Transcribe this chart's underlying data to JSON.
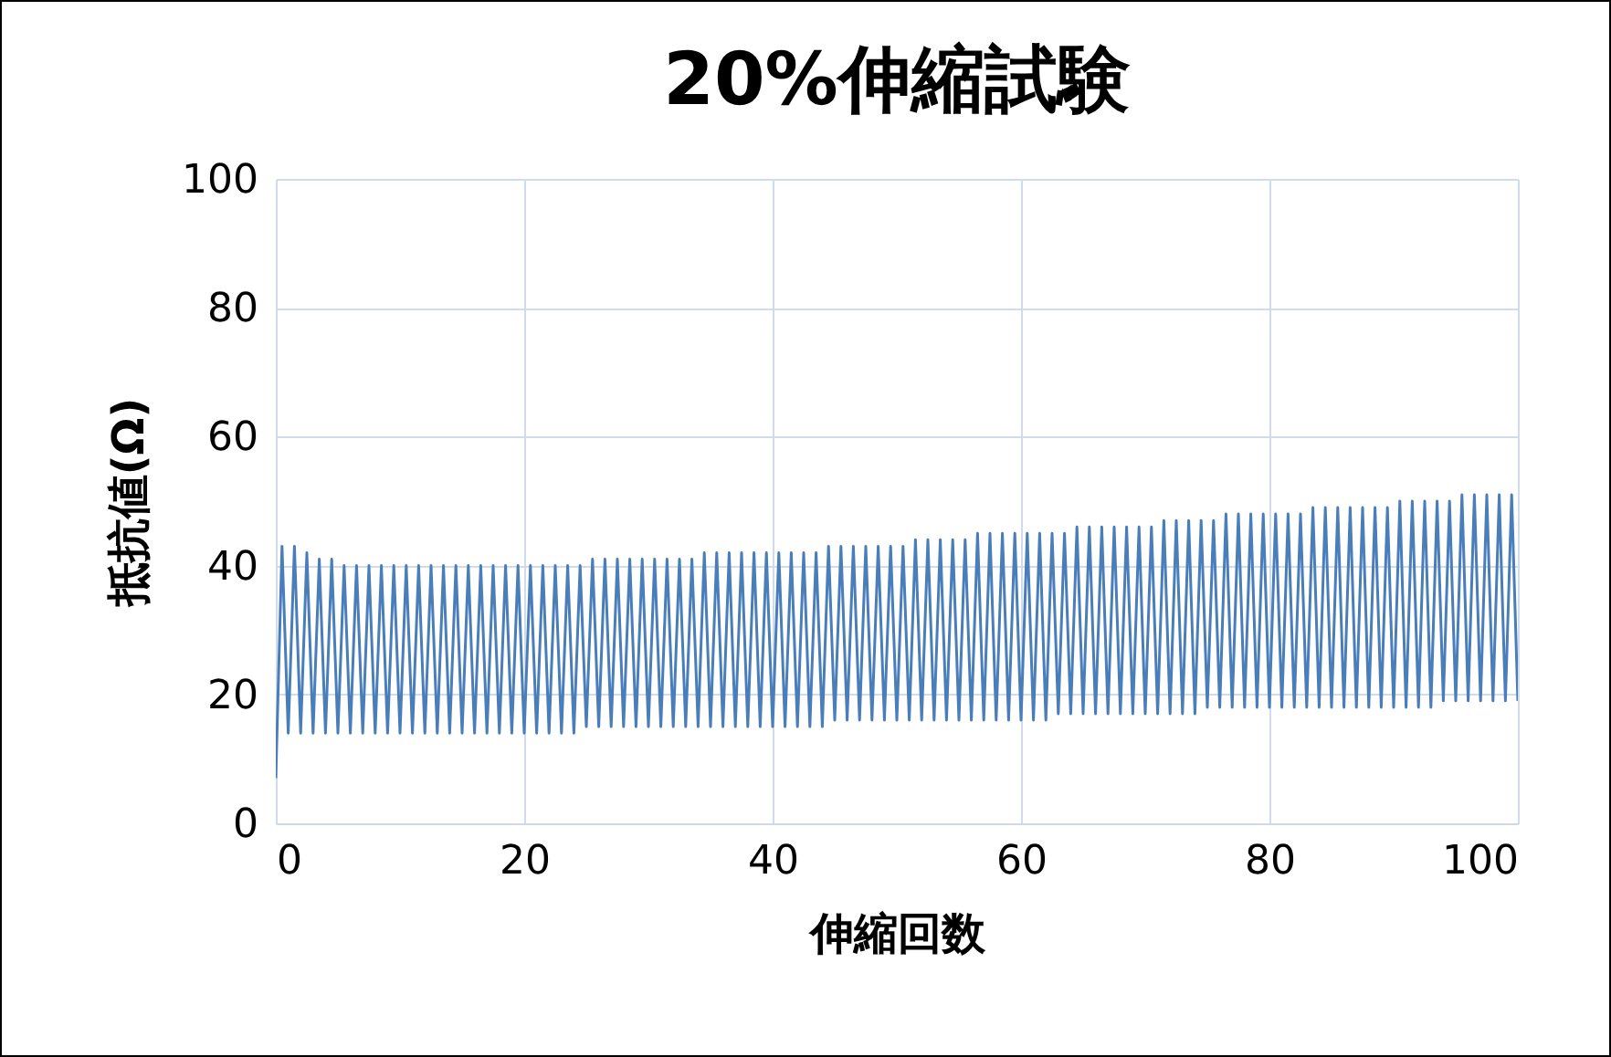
{
  "chart_data": {
    "type": "line",
    "title": "20%伸縮試験",
    "xlabel": "伸縮回数",
    "ylabel": "抵抗値(Ω)",
    "x": [
      0,
      0.5,
      1,
      1.5,
      2,
      2.5,
      3,
      3.5,
      4,
      4.5,
      5,
      5.5,
      6,
      6.5,
      7,
      7.5,
      8,
      8.5,
      9,
      9.5,
      10,
      10.5,
      11,
      11.5,
      12,
      12.5,
      13,
      13.5,
      14,
      14.5,
      15,
      15.5,
      16,
      16.5,
      17,
      17.5,
      18,
      18.5,
      19,
      19.5,
      20,
      20.5,
      21,
      21.5,
      22,
      22.5,
      23,
      23.5,
      24,
      24.5,
      25,
      25.5,
      26,
      26.5,
      27,
      27.5,
      28,
      28.5,
      29,
      29.5,
      30,
      30.5,
      31,
      31.5,
      32,
      32.5,
      33,
      33.5,
      34,
      34.5,
      35,
      35.5,
      36,
      36.5,
      37,
      37.5,
      38,
      38.5,
      39,
      39.5,
      40,
      40.5,
      41,
      41.5,
      42,
      42.5,
      43,
      43.5,
      44,
      44.5,
      45,
      45.5,
      46,
      46.5,
      47,
      47.5,
      48,
      48.5,
      49,
      49.5,
      50,
      50.5,
      51,
      51.5,
      52,
      52.5,
      53,
      53.5,
      54,
      54.5,
      55,
      55.5,
      56,
      56.5,
      57,
      57.5,
      58,
      58.5,
      59,
      59.5,
      60,
      60.5,
      61,
      61.5,
      62,
      62.5,
      63,
      63.5,
      64,
      64.5,
      65,
      65.5,
      66,
      66.5,
      67,
      67.5,
      68,
      68.5,
      69,
      69.5,
      70,
      70.5,
      71,
      71.5,
      72,
      72.5,
      73,
      73.5,
      74,
      74.5,
      75,
      75.5,
      76,
      76.5,
      77,
      77.5,
      78,
      78.5,
      79,
      79.5,
      80,
      80.5,
      81,
      81.5,
      82,
      82.5,
      83,
      83.5,
      84,
      84.5,
      85,
      85.5,
      86,
      86.5,
      87,
      87.5,
      88,
      88.5,
      89,
      89.5,
      90,
      90.5,
      91,
      91.5,
      92,
      92.5,
      93,
      93.5,
      94,
      94.5,
      95,
      95.5,
      96,
      96.5,
      97,
      97.5,
      98,
      98.5,
      99,
      99.5,
      100
    ],
    "series": [
      {
        "color": "#4a7ebb",
        "values": [
          7,
          43,
          14,
          43,
          14,
          42,
          14,
          41,
          14,
          41,
          14,
          40,
          14,
          40,
          14,
          40,
          14,
          40,
          14,
          40,
          14,
          40,
          14,
          40,
          14,
          40,
          14,
          40,
          14,
          40,
          14,
          40,
          14,
          40,
          14,
          40,
          14,
          40,
          14,
          40,
          14,
          40,
          14,
          40,
          14,
          40,
          14,
          40,
          14,
          40,
          15,
          41,
          15,
          41,
          15,
          41,
          15,
          41,
          15,
          41,
          15,
          41,
          15,
          41,
          15,
          41,
          15,
          41,
          15,
          42,
          15,
          42,
          15,
          42,
          15,
          42,
          15,
          42,
          15,
          42,
          15,
          42,
          15,
          42,
          15,
          42,
          15,
          42,
          15,
          43,
          16,
          43,
          16,
          43,
          16,
          43,
          16,
          43,
          16,
          43,
          16,
          43,
          16,
          44,
          16,
          44,
          16,
          44,
          16,
          44,
          16,
          44,
          16,
          45,
          16,
          45,
          16,
          45,
          16,
          45,
          16,
          45,
          16,
          45,
          16,
          45,
          17,
          45,
          17,
          46,
          17,
          46,
          17,
          46,
          17,
          46,
          17,
          46,
          17,
          46,
          17,
          46,
          17,
          47,
          17,
          47,
          17,
          47,
          17,
          47,
          18,
          47,
          18,
          48,
          18,
          48,
          18,
          48,
          18,
          48,
          18,
          48,
          18,
          48,
          18,
          48,
          18,
          49,
          18,
          49,
          18,
          49,
          18,
          49,
          18,
          49,
          18,
          49,
          18,
          49,
          18,
          50,
          18,
          50,
          18,
          50,
          18,
          50,
          19,
          50,
          19,
          51,
          19,
          51,
          19,
          51,
          19,
          51,
          19,
          51,
          19
        ]
      }
    ],
    "xlim": [
      0,
      100
    ],
    "xticks": [
      0,
      20,
      40,
      60,
      80,
      100
    ],
    "ylim": [
      0,
      100
    ],
    "yticks": [
      0,
      20,
      40,
      60,
      80,
      100
    ],
    "grid": true,
    "marker": "none",
    "line_style": "solid"
  }
}
